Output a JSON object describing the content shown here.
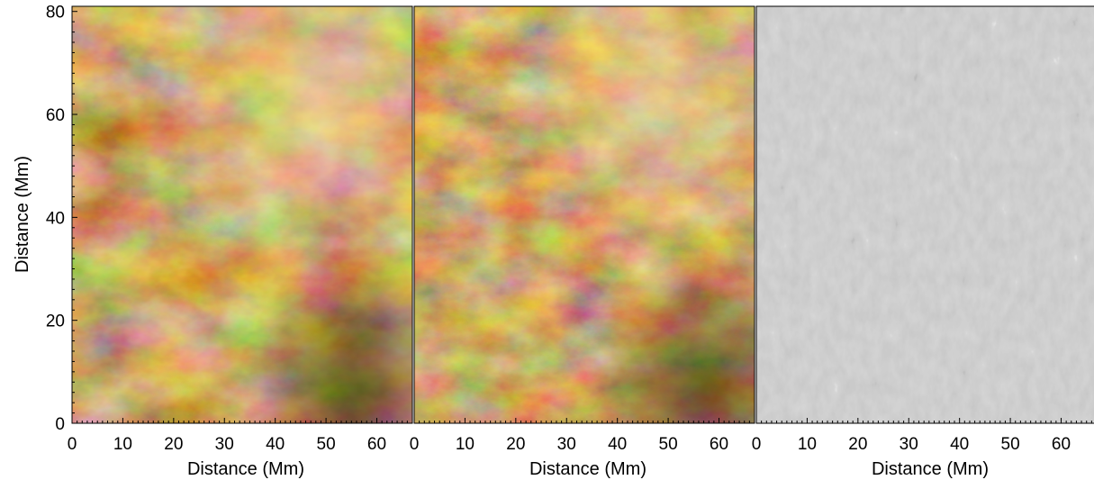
{
  "figure": {
    "y_label": "Distance (Mm)",
    "panels": [
      {
        "id": "original",
        "x_label": "Distance (Mm)",
        "x_ticks": [
          "0",
          "10",
          "20",
          "30",
          "40",
          "50",
          "60"
        ],
        "colormap": "brown-gold",
        "show_y_axis": true
      },
      {
        "id": "enhanced",
        "x_label": "Distance (Mm)",
        "x_ticks": [
          "0",
          "10",
          "20",
          "30",
          "40",
          "50",
          "60"
        ],
        "colormap": "brown-gold",
        "show_y_axis": false
      },
      {
        "id": "difference",
        "x_label": "Distance (Mm)",
        "x_ticks": [
          "0",
          "10",
          "20",
          "30",
          "40",
          "50",
          "60"
        ],
        "colormap": "grayscale",
        "show_y_axis": false
      }
    ],
    "y_ticks": [
      "0",
      "20",
      "40",
      "60",
      "80"
    ],
    "axis_range": {
      "x": [
        0,
        67
      ],
      "y": [
        0,
        81
      ]
    },
    "colors": {
      "brown_dark": "#2a1200",
      "brown_mid": "#8a5018",
      "brown_bright": "#f2d9a8",
      "gray_mid": "#9b9b9b"
    }
  }
}
